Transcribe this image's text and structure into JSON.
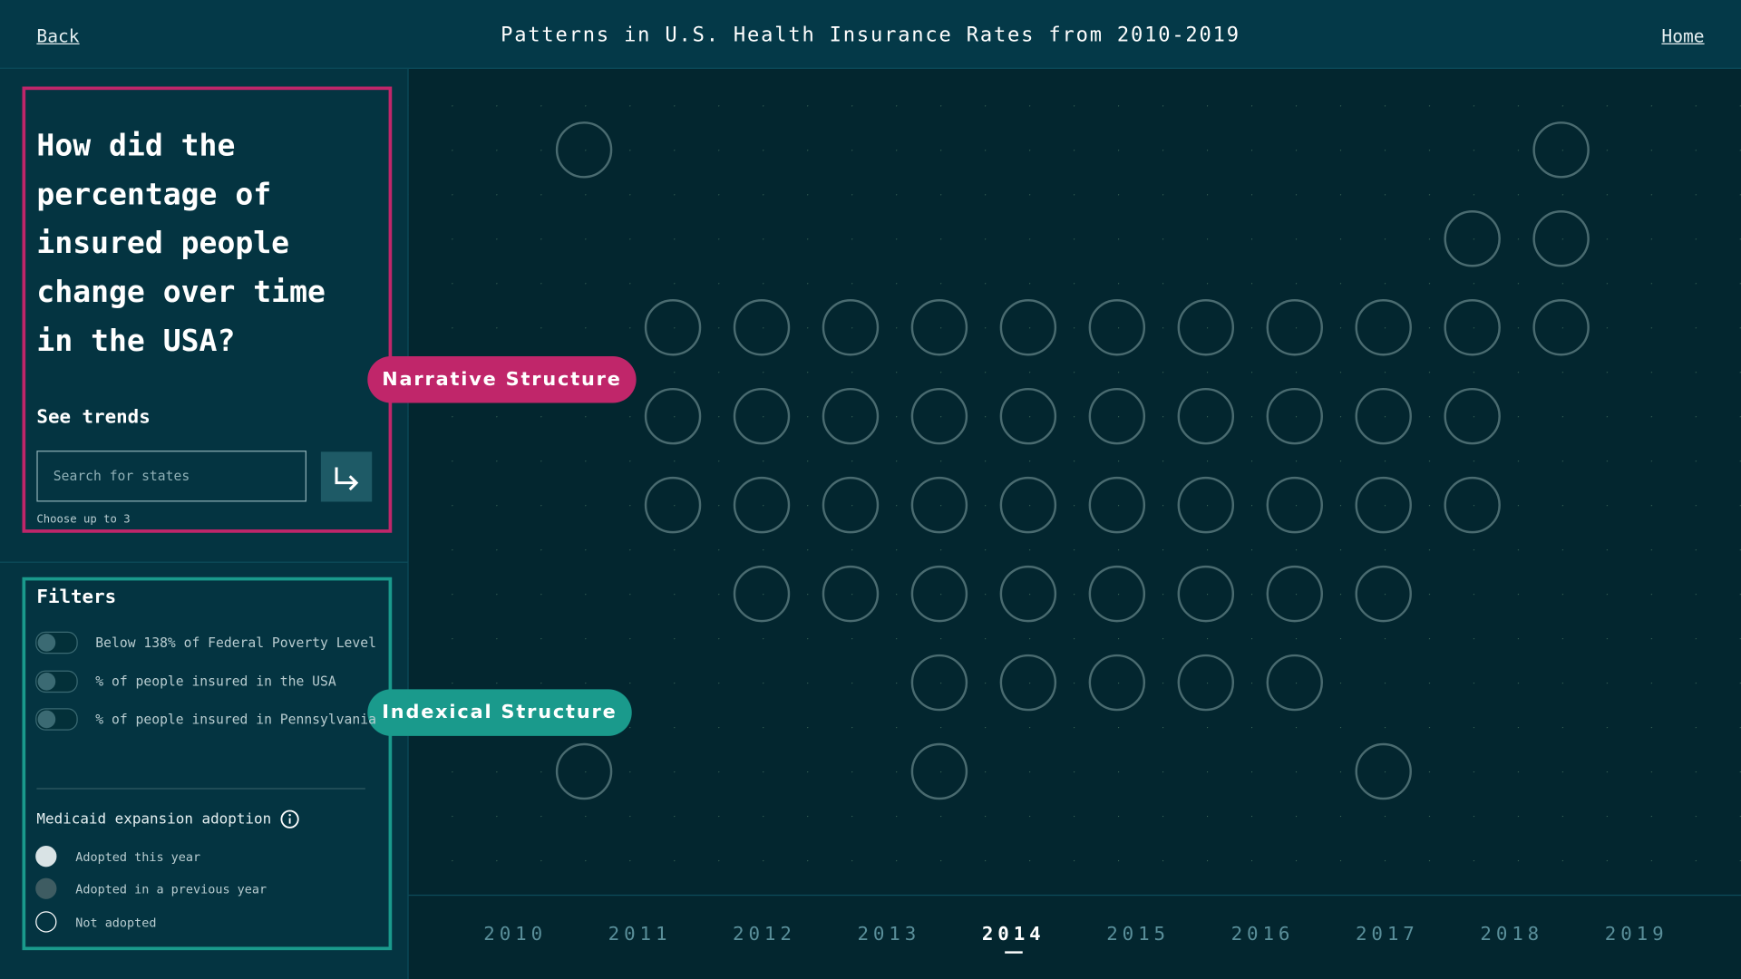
{
  "header": {
    "back": "Back",
    "title": "Patterns in U.S. Health Insurance Rates from 2010-2019",
    "home": "Home"
  },
  "question_panel": {
    "question": "How did the percentage of insured people change over time in the USA?",
    "see_trends": "See trends",
    "search_placeholder": "Search for states",
    "hint": "Choose up to 3"
  },
  "filters": {
    "title": "Filters",
    "toggles": [
      "Below 138% of Federal Poverty Level",
      "% of people insured in the USA",
      "% of people insured in Pennsylvania"
    ],
    "medicaid_title": "Medicaid expansion adoption",
    "legend": [
      "Adopted this year",
      "Adopted in a previous year",
      "Not adopted"
    ]
  },
  "annotations": {
    "narrative": "Narrative Structure",
    "indexical": "Indexical Structure"
  },
  "years": [
    "2010",
    "2011",
    "2012",
    "2013",
    "2014",
    "2015",
    "2016",
    "2017",
    "2018",
    "2019"
  ],
  "selected_year": "2014"
}
